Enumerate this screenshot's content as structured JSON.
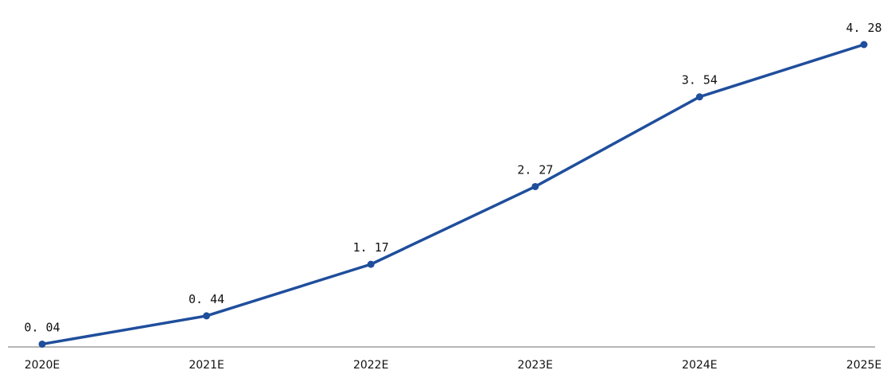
{
  "chart_data": {
    "type": "line",
    "title": "",
    "xlabel": "",
    "ylabel": "",
    "categories": [
      "2020E",
      "2021E",
      "2022E",
      "2023E",
      "2024E",
      "2025E"
    ],
    "series": [
      {
        "values": [
          0.04,
          0.44,
          1.17,
          2.27,
          3.54,
          4.28
        ],
        "labels": [
          "0. 04",
          "0. 44",
          "1. 17",
          "2. 27",
          "3. 54",
          "4. 28"
        ]
      }
    ],
    "ylim": [
      0,
      4.28
    ],
    "grid": false,
    "legend": "none",
    "colors": {
      "line": "#1f4e9c",
      "axis": "#8a8a8a",
      "text": "#111111"
    }
  }
}
